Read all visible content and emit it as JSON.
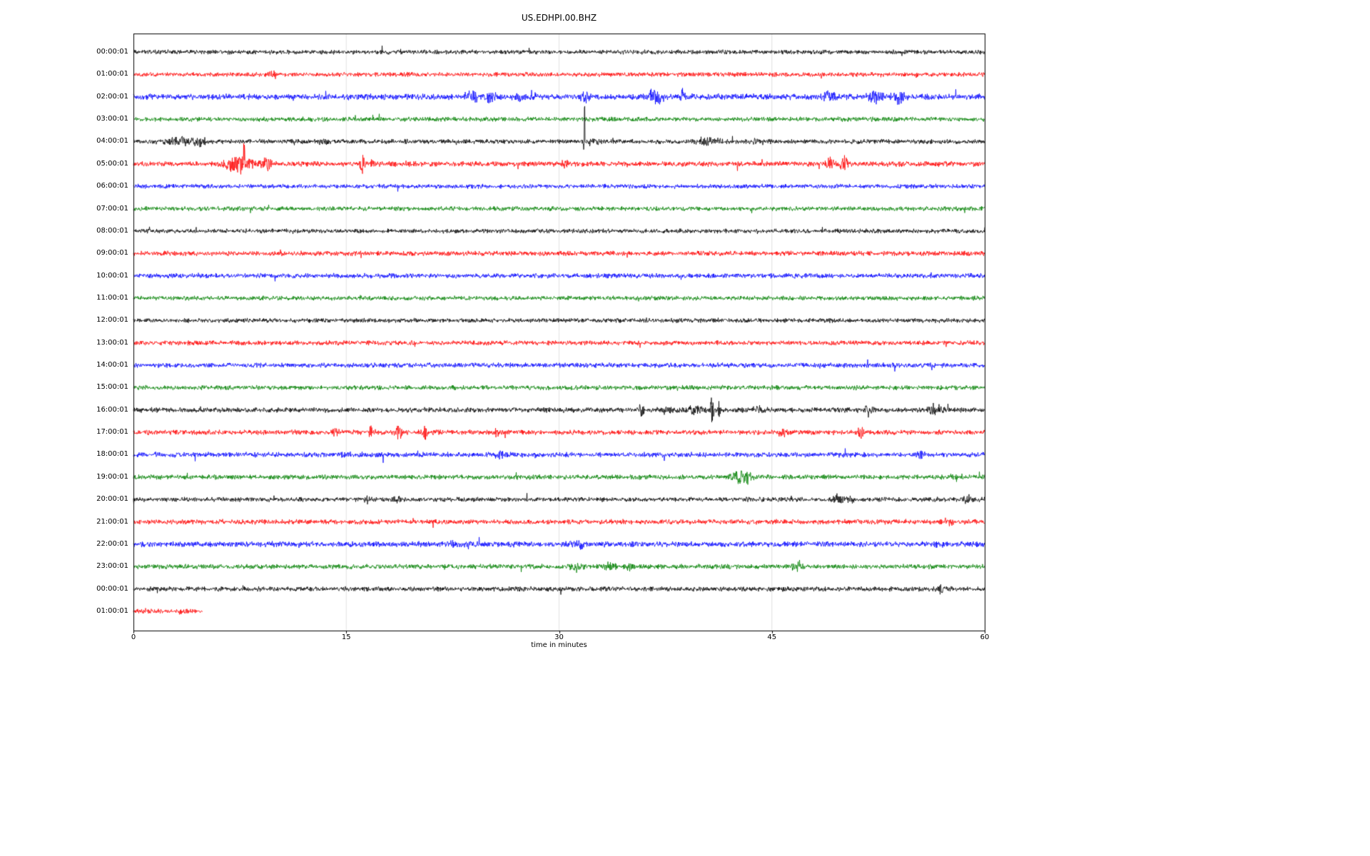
{
  "chart_data": {
    "type": "line",
    "subtype": "seismogram-dayplot-helicorder",
    "title": "US.EDHPI.00.BHZ",
    "xlabel": "time in minutes",
    "x_range": [
      0,
      60
    ],
    "x_ticks": [
      0,
      15,
      30,
      45,
      60
    ],
    "grid": {
      "x_gridlines": [
        15,
        30,
        45
      ],
      "color": "#d9d9d9"
    },
    "legend": "none",
    "trace_color_cycle": [
      "#000000",
      "#ff0000",
      "#0000ff",
      "#008000"
    ],
    "rows": [
      {
        "label": "00:00:01",
        "color": "#000000",
        "noise_amp": 2.2,
        "end_minute": 60,
        "events": []
      },
      {
        "label": "01:00:01",
        "color": "#ff0000",
        "noise_amp": 2.2,
        "end_minute": 60,
        "events": [
          {
            "m": 9.7,
            "a": 6,
            "w": 0.25
          }
        ]
      },
      {
        "label": "02:00:01",
        "color": "#0000ff",
        "noise_amp": 3.0,
        "end_minute": 60,
        "events": [
          {
            "m": 23.9,
            "a": 7,
            "w": 0.5
          },
          {
            "m": 25.1,
            "a": 8,
            "w": 0.4
          },
          {
            "m": 27.1,
            "a": 6,
            "w": 0.3
          },
          {
            "m": 31.9,
            "a": 6,
            "w": 0.4
          },
          {
            "m": 36.8,
            "a": 10,
            "w": 0.6
          },
          {
            "m": 38.7,
            "a": 9,
            "w": 0.2
          },
          {
            "m": 49.0,
            "a": 8,
            "w": 0.5
          },
          {
            "m": 52.2,
            "a": 10,
            "w": 0.6
          },
          {
            "m": 54.0,
            "a": 9,
            "w": 0.5
          }
        ]
      },
      {
        "label": "03:00:01",
        "color": "#008000",
        "noise_amp": 2.3,
        "end_minute": 60,
        "events": []
      },
      {
        "label": "04:00:01",
        "color": "#000000",
        "noise_amp": 2.3,
        "end_minute": 60,
        "events": [
          {
            "m": 3.0,
            "a": 5,
            "w": 1.0
          },
          {
            "m": 3.5,
            "a": 9,
            "w": 0.15
          },
          {
            "m": 4.5,
            "a": 6,
            "w": 0.7
          },
          {
            "m": 13.5,
            "a": 4,
            "w": 0.5
          },
          {
            "m": 19.2,
            "a": 13,
            "w": 0.08
          },
          {
            "m": 31.8,
            "a": 55,
            "w": 0.06
          },
          {
            "m": 32.4,
            "a": 5,
            "w": 0.6
          },
          {
            "m": 40.5,
            "a": 5,
            "w": 1.0
          },
          {
            "m": 44.0,
            "a": 3,
            "w": 0.5
          }
        ]
      },
      {
        "label": "05:00:01",
        "color": "#ff0000",
        "noise_amp": 2.6,
        "end_minute": 60,
        "events": [
          {
            "m": 7.5,
            "a": 13,
            "w": 1.0
          },
          {
            "m": 7.8,
            "a": 25,
            "w": 0.1
          },
          {
            "m": 9.3,
            "a": 12,
            "w": 0.4
          },
          {
            "m": 16.1,
            "a": 12,
            "w": 0.15
          },
          {
            "m": 16.6,
            "a": 6,
            "w": 0.5
          },
          {
            "m": 30.5,
            "a": 4,
            "w": 0.4
          },
          {
            "m": 49.1,
            "a": 8,
            "w": 0.4
          },
          {
            "m": 50.1,
            "a": 12,
            "w": 0.25
          }
        ]
      },
      {
        "label": "06:00:01",
        "color": "#0000ff",
        "noise_amp": 2.2,
        "end_minute": 60,
        "events": []
      },
      {
        "label": "07:00:01",
        "color": "#008000",
        "noise_amp": 2.2,
        "end_minute": 60,
        "events": []
      },
      {
        "label": "08:00:01",
        "color": "#000000",
        "noise_amp": 2.2,
        "end_minute": 60,
        "events": []
      },
      {
        "label": "09:00:01",
        "color": "#ff0000",
        "noise_amp": 2.4,
        "end_minute": 60,
        "events": []
      },
      {
        "label": "10:00:01",
        "color": "#0000ff",
        "noise_amp": 2.4,
        "end_minute": 60,
        "events": []
      },
      {
        "label": "11:00:01",
        "color": "#008000",
        "noise_amp": 2.2,
        "end_minute": 60,
        "events": []
      },
      {
        "label": "12:00:01",
        "color": "#000000",
        "noise_amp": 2.2,
        "end_minute": 60,
        "events": []
      },
      {
        "label": "13:00:01",
        "color": "#ff0000",
        "noise_amp": 2.3,
        "end_minute": 60,
        "events": []
      },
      {
        "label": "14:00:01",
        "color": "#0000ff",
        "noise_amp": 2.4,
        "end_minute": 60,
        "events": []
      },
      {
        "label": "15:00:01",
        "color": "#008000",
        "noise_amp": 2.3,
        "end_minute": 60,
        "events": []
      },
      {
        "label": "16:00:01",
        "color": "#000000",
        "noise_amp": 2.5,
        "end_minute": 60,
        "events": [
          {
            "m": 35.8,
            "a": 10,
            "w": 0.25
          },
          {
            "m": 37.5,
            "a": 6,
            "w": 0.5
          },
          {
            "m": 39.5,
            "a": 6,
            "w": 0.8
          },
          {
            "m": 40.8,
            "a": 22,
            "w": 0.12
          },
          {
            "m": 41.3,
            "a": 14,
            "w": 0.1
          },
          {
            "m": 44.0,
            "a": 4,
            "w": 0.5
          },
          {
            "m": 51.8,
            "a": 8,
            "w": 0.3
          },
          {
            "m": 56.3,
            "a": 9,
            "w": 0.4
          },
          {
            "m": 56.9,
            "a": 7,
            "w": 0.3
          }
        ]
      },
      {
        "label": "17:00:01",
        "color": "#ff0000",
        "noise_amp": 2.5,
        "end_minute": 60,
        "events": [
          {
            "m": 14.2,
            "a": 5,
            "w": 0.3
          },
          {
            "m": 16.7,
            "a": 9,
            "w": 0.2
          },
          {
            "m": 18.7,
            "a": 10,
            "w": 0.25
          },
          {
            "m": 20.5,
            "a": 12,
            "w": 0.2
          },
          {
            "m": 25.6,
            "a": 8,
            "w": 0.25
          },
          {
            "m": 45.8,
            "a": 6,
            "w": 0.3
          },
          {
            "m": 51.3,
            "a": 9,
            "w": 0.25
          }
        ]
      },
      {
        "label": "18:00:01",
        "color": "#0000ff",
        "noise_amp": 2.5,
        "end_minute": 60,
        "events": [
          {
            "m": 15.0,
            "a": 5,
            "w": 0.4
          },
          {
            "m": 25.8,
            "a": 5,
            "w": 0.4
          },
          {
            "m": 55.5,
            "a": 6,
            "w": 0.4
          }
        ]
      },
      {
        "label": "19:00:01",
        "color": "#008000",
        "noise_amp": 2.4,
        "end_minute": 60,
        "events": [
          {
            "m": 42.6,
            "a": 9,
            "w": 0.7
          },
          {
            "m": 43.2,
            "a": 8,
            "w": 0.4
          },
          {
            "m": 58.0,
            "a": 4,
            "w": 0.4
          }
        ]
      },
      {
        "label": "20:00:01",
        "color": "#000000",
        "noise_amp": 2.3,
        "end_minute": 60,
        "events": [
          {
            "m": 16.5,
            "a": 5,
            "w": 0.35
          },
          {
            "m": 18.5,
            "a": 6,
            "w": 0.35
          },
          {
            "m": 49.6,
            "a": 6,
            "w": 0.5
          },
          {
            "m": 50.7,
            "a": 6,
            "w": 0.4
          },
          {
            "m": 58.9,
            "a": 5,
            "w": 0.5
          }
        ]
      },
      {
        "label": "21:00:01",
        "color": "#ff0000",
        "noise_amp": 2.5,
        "end_minute": 60,
        "events": [
          {
            "m": 57.5,
            "a": 4,
            "w": 0.4
          }
        ]
      },
      {
        "label": "22:00:01",
        "color": "#0000ff",
        "noise_amp": 2.8,
        "end_minute": 60,
        "events": [
          {
            "m": 22.5,
            "a": 5,
            "w": 0.4
          },
          {
            "m": 23.6,
            "a": 4,
            "w": 0.3
          },
          {
            "m": 31.3,
            "a": 6,
            "w": 0.5
          },
          {
            "m": 56.8,
            "a": 4,
            "w": 0.4
          }
        ]
      },
      {
        "label": "23:00:01",
        "color": "#008000",
        "noise_amp": 2.4,
        "end_minute": 60,
        "events": [
          {
            "m": 31.2,
            "a": 6,
            "w": 0.5
          },
          {
            "m": 33.6,
            "a": 7,
            "w": 0.45
          },
          {
            "m": 34.9,
            "a": 6,
            "w": 0.4
          },
          {
            "m": 46.8,
            "a": 5,
            "w": 0.5
          }
        ]
      },
      {
        "label": "00:00:01",
        "color": "#000000",
        "noise_amp": 2.4,
        "end_minute": 60,
        "events": [
          {
            "m": 56.9,
            "a": 14,
            "w": 0.12
          }
        ]
      },
      {
        "label": "01:00:01",
        "color": "#ff0000",
        "noise_amp": 2.0,
        "end_minute": 4.9,
        "events": [
          {
            "m": 1.2,
            "a": 3,
            "w": 0.8
          },
          {
            "m": 3.5,
            "a": 3,
            "w": 0.8
          }
        ]
      }
    ]
  }
}
